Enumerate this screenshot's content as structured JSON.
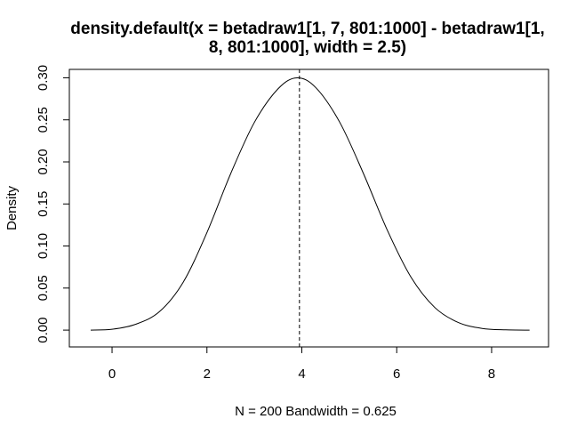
{
  "chart_data": {
    "type": "line",
    "title": [
      "density.default(x = betadraw1[1, 7, 801:1000] - betadraw1[1,",
      "8, 801:1000], width = 2.5)"
    ],
    "xlabel": "N = 200   Bandwidth = 0.625",
    "ylabel": "Density",
    "xlim": [
      -0.9,
      9.2
    ],
    "ylim": [
      -0.02,
      0.31
    ],
    "xticks": [
      0,
      2,
      4,
      6,
      8
    ],
    "xtick_labels": [
      "0",
      "2",
      "4",
      "6",
      "8"
    ],
    "yticks": [
      0.0,
      0.05,
      0.1,
      0.15,
      0.2,
      0.25,
      0.3
    ],
    "ytick_labels": [
      "0.00",
      "0.05",
      "0.10",
      "0.15",
      "0.20",
      "0.25",
      "0.30"
    ],
    "grid": false,
    "reference_line": {
      "x": 3.95,
      "style": "dashed"
    },
    "series": [
      {
        "x": [
          -0.45,
          0.0,
          0.5,
          1.0,
          1.5,
          2.0,
          2.5,
          3.0,
          3.5,
          3.9,
          4.3,
          4.8,
          5.3,
          5.8,
          6.3,
          6.8,
          7.3,
          7.8,
          8.3,
          8.8
        ],
        "y": [
          0.0,
          0.001,
          0.007,
          0.022,
          0.057,
          0.116,
          0.186,
          0.247,
          0.287,
          0.3,
          0.288,
          0.247,
          0.186,
          0.119,
          0.063,
          0.027,
          0.009,
          0.002,
          0.0003,
          0.0
        ]
      }
    ]
  }
}
